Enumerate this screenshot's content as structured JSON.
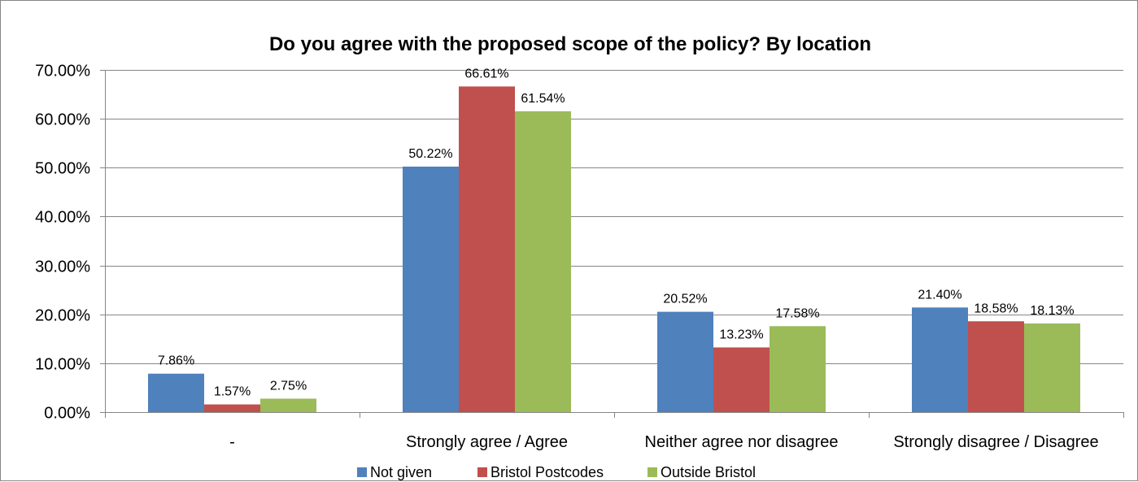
{
  "chart_data": {
    "type": "bar",
    "title": "Do you agree with the proposed scope of the policy? By location",
    "categories": [
      "-",
      "Strongly agree / Agree",
      "Neither agree nor disagree",
      "Strongly disagree / Disagree"
    ],
    "series": [
      {
        "name": "Not given",
        "color": "#4F81BD",
        "values": [
          7.86,
          50.22,
          20.52,
          21.4
        ],
        "labels": [
          "7.86%",
          "50.22%",
          "20.52%",
          "21.40%"
        ]
      },
      {
        "name": "Bristol Postcodes",
        "color": "#C0504D",
        "values": [
          1.57,
          66.61,
          13.23,
          18.58
        ],
        "labels": [
          "1.57%",
          "66.61%",
          "13.23%",
          "18.58%"
        ]
      },
      {
        "name": "Outside Bristol",
        "color": "#9BBB59",
        "values": [
          2.75,
          61.54,
          17.58,
          18.13
        ],
        "labels": [
          "2.75%",
          "61.54%",
          "17.58%",
          "18.13%"
        ]
      }
    ],
    "ylim": [
      0,
      70
    ],
    "yticks": [
      {
        "value": 0,
        "label": "0.00%"
      },
      {
        "value": 10,
        "label": "10.00%"
      },
      {
        "value": 20,
        "label": "20.00%"
      },
      {
        "value": 30,
        "label": "30.00%"
      },
      {
        "value": 40,
        "label": "40.00%"
      },
      {
        "value": 50,
        "label": "50.00%"
      },
      {
        "value": 60,
        "label": "60.00%"
      },
      {
        "value": 70,
        "label": "70.00%"
      }
    ],
    "grid": true,
    "legend_position": "bottom"
  }
}
